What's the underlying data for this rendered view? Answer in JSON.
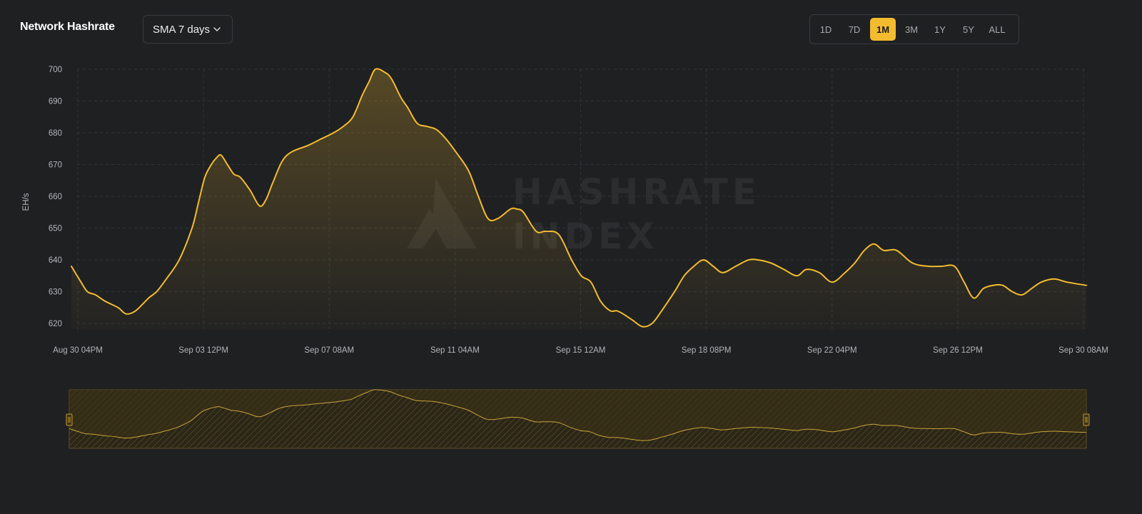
{
  "header": {
    "title": "Network Hashrate",
    "sma_select": "SMA 7 days"
  },
  "ranges": [
    {
      "label": "1D",
      "active": false
    },
    {
      "label": "7D",
      "active": false
    },
    {
      "label": "1M",
      "active": true
    },
    {
      "label": "3M",
      "active": false
    },
    {
      "label": "1Y",
      "active": false
    },
    {
      "label": "5Y",
      "active": false
    },
    {
      "label": "ALL",
      "active": false
    }
  ],
  "watermark": {
    "line1": "HASHRATE",
    "line2": "INDEX"
  },
  "colors": {
    "accent": "#f3bc2f",
    "background": "#1f2022",
    "grid": "#333437"
  },
  "icons": {
    "dropdown": "chevron-down-icon",
    "watermark_logo": "hashrate-index-logo"
  },
  "chart_data": {
    "type": "area",
    "title": "",
    "xlabel": "",
    "ylabel": "EH/s",
    "ylim": [
      618,
      700
    ],
    "yticks": [
      620,
      630,
      640,
      650,
      660,
      670,
      680,
      690,
      700
    ],
    "xticks": [
      "Aug 30 04PM",
      "Sep 03 12PM",
      "Sep 07 08AM",
      "Sep 11 04AM",
      "Sep 15 12AM",
      "Sep 18 08PM",
      "Sep 22 04PM",
      "Sep 26 12PM",
      "Sep 30 08AM"
    ],
    "grid": true,
    "x_range_days": [
      -0.15,
      31.4
    ],
    "series": [
      {
        "x": [
          -0.15,
          0.15,
          0.35,
          0.6,
          0.9,
          1.3,
          1.55,
          1.85,
          2.25,
          2.5,
          2.8,
          3.2,
          3.6,
          3.8,
          4.0,
          4.2,
          4.35,
          4.5,
          4.7,
          4.9,
          5.1,
          5.4,
          5.7,
          5.9,
          6.1,
          6.4,
          6.7,
          7.2,
          7.6,
          8.0,
          8.3,
          8.6,
          8.9,
          9.1,
          9.3,
          9.6,
          9.8,
          10.1,
          10.3,
          10.6,
          10.9,
          11.2,
          11.5,
          11.8,
          12.2,
          12.5,
          12.8,
          13.1,
          13.5,
          13.7,
          13.9,
          14.3,
          14.6,
          15.0,
          15.4,
          15.7,
          16.0,
          16.3,
          16.6,
          16.8,
          17.0,
          17.3,
          17.6,
          17.9,
          18.2,
          18.6,
          18.9,
          19.2,
          19.5,
          19.8,
          20.1,
          20.5,
          20.9,
          21.2,
          21.6,
          22.0,
          22.4,
          22.7,
          23.1,
          23.5,
          23.9,
          24.2,
          24.5,
          24.8,
          25.1,
          25.5,
          26.0,
          26.5,
          26.9,
          27.3,
          27.6,
          27.9,
          28.2,
          28.5,
          28.8,
          29.1,
          29.4,
          29.7,
          30.0,
          30.4,
          30.8,
          31.4
        ],
        "values": [
          638,
          633,
          630,
          629,
          627,
          625,
          623,
          624,
          628,
          630,
          634,
          640,
          650,
          658,
          666,
          670,
          672,
          673,
          670,
          667,
          666,
          662,
          657,
          659,
          664,
          671,
          674,
          676,
          678,
          680,
          682,
          685,
          692,
          696,
          700,
          699,
          697,
          691,
          688,
          683,
          682,
          681,
          678,
          674,
          668,
          660,
          653,
          653,
          656,
          656,
          655,
          649,
          649,
          648,
          640,
          635,
          633,
          627,
          624,
          624,
          623,
          621,
          619,
          620,
          624,
          630,
          635,
          638,
          640,
          638,
          636,
          638,
          640,
          640,
          639,
          637,
          635,
          637,
          636,
          633,
          636,
          639,
          643,
          645,
          643,
          643,
          639,
          638,
          638,
          638,
          633,
          628,
          631,
          632,
          632,
          630,
          629,
          631,
          633,
          634,
          633,
          632
        ]
      }
    ]
  }
}
